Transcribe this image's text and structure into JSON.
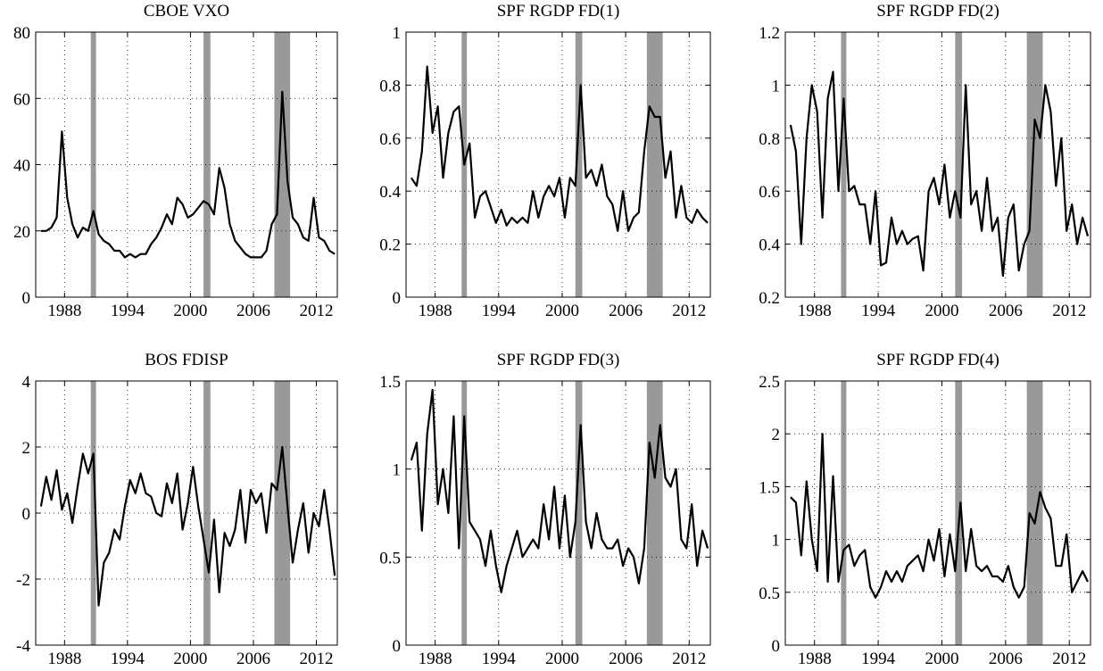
{
  "chart_data": [
    {
      "type": "line",
      "title": "CBOE VXO",
      "color": "#000000",
      "shade_color": "#999999",
      "grid": true,
      "x": [
        1985.75,
        1986.25,
        1986.75,
        1987.25,
        1987.75,
        1988.25,
        1988.75,
        1989.25,
        1989.75,
        1990.25,
        1990.75,
        1991.25,
        1991.75,
        1992.25,
        1992.75,
        1993.25,
        1993.75,
        1994.25,
        1994.75,
        1995.25,
        1995.75,
        1996.25,
        1996.75,
        1997.25,
        1997.75,
        1998.25,
        1998.75,
        1999.25,
        1999.75,
        2000.25,
        2000.75,
        2001.25,
        2001.75,
        2002.25,
        2002.75,
        2003.25,
        2003.75,
        2004.25,
        2004.75,
        2005.25,
        2005.75,
        2006.25,
        2006.75,
        2007.25,
        2007.75,
        2008.25,
        2008.75,
        2009.25,
        2009.75,
        2010.25,
        2010.75,
        2011.25,
        2011.75,
        2012.25,
        2012.75,
        2013.25,
        2013.75
      ],
      "values": [
        20,
        20,
        21,
        24,
        50,
        30,
        22,
        18,
        21,
        20,
        26,
        19,
        17,
        16,
        14,
        14,
        12,
        13,
        12,
        13,
        13,
        16,
        18,
        21,
        25,
        22,
        30,
        28,
        24,
        25,
        27,
        29,
        28,
        25,
        39,
        33,
        22,
        17,
        15,
        13,
        12,
        12,
        12,
        14,
        22,
        25,
        62,
        35,
        24,
        22,
        18,
        17,
        30,
        18,
        17,
        14,
        13
      ],
      "shaded_periods": [
        [
          1990.5,
          1991.0
        ],
        [
          2001.25,
          2001.9
        ],
        [
          2008.0,
          2009.5
        ]
      ],
      "xlim": [
        1985.25,
        2014.0
      ],
      "xticks": [
        1988,
        1994,
        2000,
        2006,
        2012
      ],
      "ylim": [
        0,
        80
      ],
      "yticks": [
        0,
        20,
        40,
        60,
        80
      ]
    },
    {
      "type": "line",
      "title": "SPF RGDP FD(1)",
      "color": "#000000",
      "shade_color": "#999999",
      "grid": true,
      "x": [
        1985.75,
        1986.25,
        1986.75,
        1987.25,
        1987.75,
        1988.25,
        1988.75,
        1989.25,
        1989.75,
        1990.25,
        1990.75,
        1991.25,
        1991.75,
        1992.25,
        1992.75,
        1993.25,
        1993.75,
        1994.25,
        1994.75,
        1995.25,
        1995.75,
        1996.25,
        1996.75,
        1997.25,
        1997.75,
        1998.25,
        1998.75,
        1999.25,
        1999.75,
        2000.25,
        2000.75,
        2001.25,
        2001.75,
        2002.25,
        2002.75,
        2003.25,
        2003.75,
        2004.25,
        2004.75,
        2005.25,
        2005.75,
        2006.25,
        2006.75,
        2007.25,
        2007.75,
        2008.25,
        2008.75,
        2009.25,
        2009.75,
        2010.25,
        2010.75,
        2011.25,
        2011.75,
        2012.25,
        2012.75,
        2013.25,
        2013.75
      ],
      "values": [
        0.45,
        0.42,
        0.55,
        0.87,
        0.62,
        0.72,
        0.45,
        0.62,
        0.7,
        0.72,
        0.5,
        0.58,
        0.3,
        0.38,
        0.4,
        0.34,
        0.28,
        0.33,
        0.27,
        0.3,
        0.28,
        0.3,
        0.28,
        0.4,
        0.3,
        0.38,
        0.42,
        0.38,
        0.45,
        0.3,
        0.45,
        0.42,
        0.8,
        0.45,
        0.48,
        0.42,
        0.5,
        0.38,
        0.35,
        0.25,
        0.4,
        0.25,
        0.3,
        0.32,
        0.55,
        0.72,
        0.68,
        0.68,
        0.45,
        0.55,
        0.3,
        0.42,
        0.3,
        0.28,
        0.33,
        0.3,
        0.28
      ],
      "shaded_periods": [
        [
          1990.5,
          1991.0
        ],
        [
          2001.25,
          2001.9
        ],
        [
          2008.0,
          2009.5
        ]
      ],
      "xlim": [
        1985.25,
        2014.0
      ],
      "xticks": [
        1988,
        1994,
        2000,
        2006,
        2012
      ],
      "ylim": [
        0,
        1
      ],
      "yticks": [
        0,
        0.2,
        0.4,
        0.6,
        0.8,
        1
      ]
    },
    {
      "type": "line",
      "title": "SPF RGDP FD(2)",
      "color": "#000000",
      "shade_color": "#999999",
      "grid": true,
      "x": [
        1985.75,
        1986.25,
        1986.75,
        1987.25,
        1987.75,
        1988.25,
        1988.75,
        1989.25,
        1989.75,
        1990.25,
        1990.75,
        1991.25,
        1991.75,
        1992.25,
        1992.75,
        1993.25,
        1993.75,
        1994.25,
        1994.75,
        1995.25,
        1995.75,
        1996.25,
        1996.75,
        1997.25,
        1997.75,
        1998.25,
        1998.75,
        1999.25,
        1999.75,
        2000.25,
        2000.75,
        2001.25,
        2001.75,
        2002.25,
        2002.75,
        2003.25,
        2003.75,
        2004.25,
        2004.75,
        2005.25,
        2005.75,
        2006.25,
        2006.75,
        2007.25,
        2007.75,
        2008.25,
        2008.75,
        2009.25,
        2009.75,
        2010.25,
        2010.75,
        2011.25,
        2011.75,
        2012.25,
        2012.75,
        2013.25,
        2013.75
      ],
      "values": [
        0.85,
        0.75,
        0.4,
        0.8,
        1.0,
        0.9,
        0.5,
        0.95,
        1.05,
        0.6,
        0.95,
        0.6,
        0.62,
        0.55,
        0.55,
        0.4,
        0.6,
        0.32,
        0.33,
        0.5,
        0.4,
        0.45,
        0.4,
        0.42,
        0.43,
        0.3,
        0.6,
        0.65,
        0.55,
        0.7,
        0.5,
        0.6,
        0.5,
        1.0,
        0.55,
        0.6,
        0.45,
        0.65,
        0.45,
        0.5,
        0.28,
        0.5,
        0.55,
        0.3,
        0.4,
        0.45,
        0.87,
        0.8,
        1.0,
        0.9,
        0.62,
        0.8,
        0.45,
        0.55,
        0.4,
        0.5,
        0.43
      ],
      "shaded_periods": [
        [
          1990.5,
          1991.0
        ],
        [
          2001.25,
          2001.9
        ],
        [
          2008.0,
          2009.5
        ]
      ],
      "xlim": [
        1985.25,
        2014.0
      ],
      "xticks": [
        1988,
        1994,
        2000,
        2006,
        2012
      ],
      "ylim": [
        0.2,
        1.2
      ],
      "yticks": [
        0.2,
        0.4,
        0.6,
        0.8,
        1,
        1.2
      ]
    },
    {
      "type": "line",
      "title": "BOS FDISP",
      "color": "#000000",
      "shade_color": "#999999",
      "grid": true,
      "x": [
        1985.75,
        1986.25,
        1986.75,
        1987.25,
        1987.75,
        1988.25,
        1988.75,
        1989.25,
        1989.75,
        1990.25,
        1990.75,
        1991.25,
        1991.75,
        1992.25,
        1992.75,
        1993.25,
        1993.75,
        1994.25,
        1994.75,
        1995.25,
        1995.75,
        1996.25,
        1996.75,
        1997.25,
        1997.75,
        1998.25,
        1998.75,
        1999.25,
        1999.75,
        2000.25,
        2000.75,
        2001.25,
        2001.75,
        2002.25,
        2002.75,
        2003.25,
        2003.75,
        2004.25,
        2004.75,
        2005.25,
        2005.75,
        2006.25,
        2006.75,
        2007.25,
        2007.75,
        2008.25,
        2008.75,
        2009.25,
        2009.75,
        2010.25,
        2010.75,
        2011.25,
        2011.75,
        2012.25,
        2012.75,
        2013.25,
        2013.75
      ],
      "values": [
        0.2,
        1.1,
        0.4,
        1.3,
        0.1,
        0.6,
        -0.3,
        0.8,
        1.8,
        1.2,
        1.8,
        -2.8,
        -1.5,
        -1.2,
        -0.5,
        -0.8,
        0.2,
        1.0,
        0.6,
        1.2,
        0.6,
        0.5,
        0.0,
        -0.1,
        0.9,
        0.3,
        1.2,
        -0.5,
        0.3,
        1.4,
        0.2,
        -0.8,
        -1.8,
        -0.2,
        -2.4,
        -0.6,
        -1.0,
        -0.5,
        0.7,
        -0.9,
        0.7,
        0.3,
        0.6,
        -0.6,
        0.9,
        0.7,
        2.0,
        0.2,
        -1.5,
        -0.5,
        0.3,
        -1.2,
        0.0,
        -0.4,
        0.7,
        -0.5,
        -1.9
      ],
      "shaded_periods": [
        [
          1990.5,
          1991.0
        ],
        [
          2001.25,
          2001.9
        ],
        [
          2008.0,
          2009.5
        ]
      ],
      "xlim": [
        1985.25,
        2014.0
      ],
      "xticks": [
        1988,
        1994,
        2000,
        2006,
        2012
      ],
      "ylim": [
        -4,
        4
      ],
      "yticks": [
        -4,
        -2,
        0,
        2,
        4
      ]
    },
    {
      "type": "line",
      "title": "SPF RGDP FD(3)",
      "color": "#000000",
      "shade_color": "#999999",
      "grid": true,
      "x": [
        1985.75,
        1986.25,
        1986.75,
        1987.25,
        1987.75,
        1988.25,
        1988.75,
        1989.25,
        1989.75,
        1990.25,
        1990.75,
        1991.25,
        1991.75,
        1992.25,
        1992.75,
        1993.25,
        1993.75,
        1994.25,
        1994.75,
        1995.25,
        1995.75,
        1996.25,
        1996.75,
        1997.25,
        1997.75,
        1998.25,
        1998.75,
        1999.25,
        1999.75,
        2000.25,
        2000.75,
        2001.25,
        2001.75,
        2002.25,
        2002.75,
        2003.25,
        2003.75,
        2004.25,
        2004.75,
        2005.25,
        2005.75,
        2006.25,
        2006.75,
        2007.25,
        2007.75,
        2008.25,
        2008.75,
        2009.25,
        2009.75,
        2010.25,
        2010.75,
        2011.25,
        2011.75,
        2012.25,
        2012.75,
        2013.25,
        2013.75
      ],
      "values": [
        1.05,
        1.15,
        0.65,
        1.2,
        1.45,
        0.8,
        1.0,
        0.75,
        1.3,
        0.55,
        1.3,
        0.7,
        0.65,
        0.6,
        0.45,
        0.65,
        0.45,
        0.3,
        0.45,
        0.55,
        0.65,
        0.5,
        0.55,
        0.6,
        0.55,
        0.8,
        0.6,
        0.9,
        0.55,
        0.85,
        0.5,
        0.7,
        1.25,
        0.7,
        0.55,
        0.75,
        0.6,
        0.55,
        0.55,
        0.6,
        0.45,
        0.55,
        0.5,
        0.35,
        0.55,
        1.15,
        0.95,
        1.25,
        0.95,
        0.9,
        1.0,
        0.6,
        0.55,
        0.8,
        0.45,
        0.65,
        0.55
      ],
      "shaded_periods": [
        [
          1990.5,
          1991.0
        ],
        [
          2001.25,
          2001.9
        ],
        [
          2008.0,
          2009.5
        ]
      ],
      "xlim": [
        1985.25,
        2014.0
      ],
      "xticks": [
        1988,
        1994,
        2000,
        2006,
        2012
      ],
      "ylim": [
        0,
        1.5
      ],
      "yticks": [
        0,
        0.5,
        1,
        1.5
      ]
    },
    {
      "type": "line",
      "title": "SPF RGDP FD(4)",
      "color": "#000000",
      "shade_color": "#999999",
      "grid": true,
      "x": [
        1985.75,
        1986.25,
        1986.75,
        1987.25,
        1987.75,
        1988.25,
        1988.75,
        1989.25,
        1989.75,
        1990.25,
        1990.75,
        1991.25,
        1991.75,
        1992.25,
        1992.75,
        1993.25,
        1993.75,
        1994.25,
        1994.75,
        1995.25,
        1995.75,
        1996.25,
        1996.75,
        1997.25,
        1997.75,
        1998.25,
        1998.75,
        1999.25,
        1999.75,
        2000.25,
        2000.75,
        2001.25,
        2001.75,
        2002.25,
        2002.75,
        2003.25,
        2003.75,
        2004.25,
        2004.75,
        2005.25,
        2005.75,
        2006.25,
        2006.75,
        2007.25,
        2007.75,
        2008.25,
        2008.75,
        2009.25,
        2009.75,
        2010.25,
        2010.75,
        2011.25,
        2011.75,
        2012.25,
        2012.75,
        2013.25,
        2013.75
      ],
      "values": [
        1.4,
        1.35,
        0.85,
        1.55,
        1.0,
        0.7,
        2.0,
        0.6,
        1.6,
        0.6,
        0.9,
        0.95,
        0.75,
        0.85,
        0.9,
        0.55,
        0.45,
        0.55,
        0.7,
        0.6,
        0.7,
        0.6,
        0.75,
        0.8,
        0.85,
        0.7,
        1.0,
        0.8,
        1.1,
        0.65,
        1.05,
        0.7,
        1.35,
        0.7,
        1.1,
        0.75,
        0.7,
        0.75,
        0.65,
        0.65,
        0.6,
        0.75,
        0.55,
        0.45,
        0.55,
        1.25,
        1.15,
        1.45,
        1.3,
        1.2,
        0.75,
        0.75,
        1.05,
        0.5,
        0.6,
        0.7,
        0.6
      ],
      "shaded_periods": [
        [
          1990.5,
          1991.0
        ],
        [
          2001.25,
          2001.9
        ],
        [
          2008.0,
          2009.5
        ]
      ],
      "xlim": [
        1985.25,
        2014.0
      ],
      "xticks": [
        1988,
        1994,
        2000,
        2006,
        2012
      ],
      "ylim": [
        0,
        2.5
      ],
      "yticks": [
        0,
        0.5,
        1,
        1.5,
        2,
        2.5
      ]
    }
  ]
}
